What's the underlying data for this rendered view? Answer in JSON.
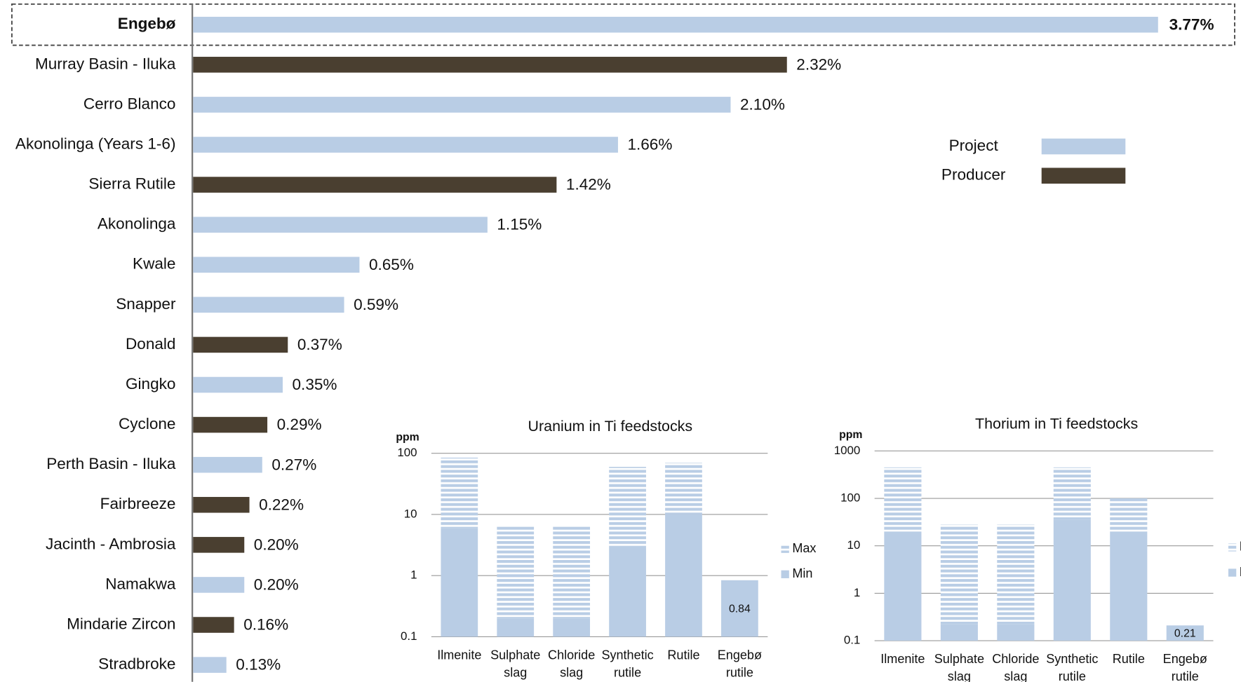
{
  "chart_data": [
    {
      "type": "hbar",
      "categories": [
        "Engebø",
        "Murray Basin - Iluka",
        "Cerro Blanco",
        "Akonolinga (Years 1-6)",
        "Sierra Rutile",
        "Akonolinga",
        "Kwale",
        "Snapper",
        "Donald",
        "Gingko",
        "Cyclone",
        "Perth Basin - Iluka",
        "Fairbreeze",
        "Jacinth - Ambrosia",
        "Namakwa",
        "Mindarie Zircon",
        "Stradbroke"
      ],
      "values": [
        3.77,
        2.32,
        2.1,
        1.66,
        1.42,
        1.15,
        0.65,
        0.59,
        0.37,
        0.35,
        0.29,
        0.27,
        0.22,
        0.2,
        0.2,
        0.16,
        0.13
      ],
      "value_labels": [
        "3.77%",
        "2.32%",
        "2.10%",
        "1.66%",
        "1.42%",
        "1.15%",
        "0.65%",
        "0.59%",
        "0.37%",
        "0.35%",
        "0.29%",
        "0.27%",
        "0.22%",
        "0.20%",
        "0.20%",
        "0.16%",
        "0.13%"
      ],
      "colors": [
        "#b9cde5",
        "#4a3f30",
        "#b9cde5",
        "#b9cde5",
        "#4a3f30",
        "#b9cde5",
        "#b9cde5",
        "#b9cde5",
        "#4a3f30",
        "#b9cde5",
        "#4a3f30",
        "#b9cde5",
        "#4a3f30",
        "#4a3f30",
        "#b9cde5",
        "#4a3f30",
        "#b9cde5"
      ],
      "legend": [
        {
          "name": "Project",
          "color": "#b9cde5"
        },
        {
          "name": "Producer",
          "color": "#4a3f30"
        }
      ],
      "highlight": "Engebø",
      "highlight_color": "#e8141c"
    },
    {
      "type": "stacked_bar",
      "title": "Uranium in Ti feedstocks",
      "y_label": "ppm",
      "log_scale": true,
      "categories": [
        "Ilmenite",
        "Sulphate slag",
        "Chloride slag",
        "Synthetic rutile",
        "Rutile",
        "Engebø rutile"
      ],
      "series": [
        {
          "name": "Min",
          "color": "#b9cde5",
          "values": [
            6,
            0.2,
            0.2,
            3,
            10,
            0.84
          ]
        },
        {
          "name": "Max",
          "color": "#b9cde5",
          "pattern": "striped",
          "values": [
            79,
            6.1,
            6.1,
            57,
            60,
            null
          ]
        }
      ],
      "ylim": [
        0.1,
        100
      ],
      "yticks": [
        0.1,
        1,
        10,
        100
      ],
      "grid": true
    },
    {
      "type": "stacked_bar",
      "title": "Thorium in Ti feedstocks",
      "y_label": "ppm",
      "log_scale": true,
      "categories": [
        "Ilmenite",
        "Sulphate slag",
        "Chloride slag",
        "Synthetic rutile",
        "Rutile",
        "Engebø rutile"
      ],
      "series": [
        {
          "name": "Min",
          "color": "#b9cde5",
          "values": [
            20,
            0.22,
            0.22,
            35,
            20,
            0.21
          ]
        },
        {
          "name": "Max",
          "color": "#b9cde5",
          "pattern": "striped",
          "values": [
            430,
            27.8,
            27.8,
            415,
            80,
            null
          ]
        }
      ],
      "ylim": [
        0.1,
        1000
      ],
      "yticks": [
        0.1,
        1,
        10,
        100,
        1000
      ],
      "grid": true
    }
  ]
}
